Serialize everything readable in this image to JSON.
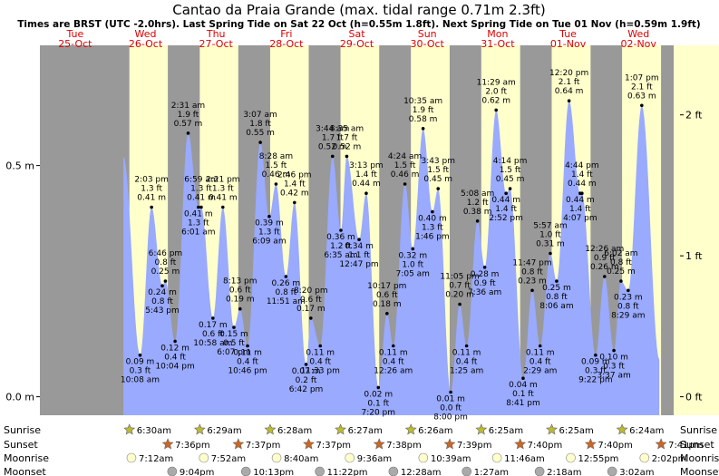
{
  "chart_data": {
    "type": "area",
    "title": "Cantao da Praia Grande (max. tidal range 0.71m 2.3ft)",
    "subtitle": "Times are BRST (UTC -2.0hrs). Last Spring Tide on Sat 22 Oct (h=0.55m 1.8ft). Next Spring Tide on Tue 01 Nov (h=0.59m 1.9ft)",
    "left_axis_labels": [
      "0.5 m",
      "0.0 m"
    ],
    "right_axis_labels": [
      "2 ft",
      "1 ft",
      "0 ft"
    ],
    "days": [
      {
        "name": "Tue",
        "date": "25-Oct"
      },
      {
        "name": "Wed",
        "date": "26-Oct"
      },
      {
        "name": "Thu",
        "date": "27-Oct"
      },
      {
        "name": "Fri",
        "date": "28-Oct"
      },
      {
        "name": "Sat",
        "date": "29-Oct"
      },
      {
        "name": "Sun",
        "date": "30-Oct"
      },
      {
        "name": "Mon",
        "date": "31-Oct"
      },
      {
        "name": "Tue",
        "date": "01-Nov"
      },
      {
        "name": "Wed",
        "date": "02-Nov"
      }
    ],
    "x_start": "2022-10-25 00:00",
    "x_end": "2022-11-02 23:59",
    "ylim_m": [
      -0.04,
      0.76
    ],
    "tides": [
      {
        "t": "2022-10-26 10:08",
        "m": 0.09,
        "time": "10:08 am",
        "h_m": "0.09 m",
        "h_ft": "0.3 ft",
        "type": "low"
      },
      {
        "t": "2022-10-26 14:03",
        "m": 0.41,
        "time": "2:03 pm",
        "h_m": "0.41 m",
        "h_ft": "1.3 ft",
        "type": "high"
      },
      {
        "t": "2022-10-26 17:43",
        "m": 0.24,
        "time": "5:43 pm",
        "h_m": "0.24 m",
        "h_ft": "0.8 ft",
        "type": "low"
      },
      {
        "t": "2022-10-26 18:46",
        "m": 0.25,
        "time": "6:46 pm",
        "h_m": "0.25 m",
        "h_ft": "0.8 ft",
        "type": "high"
      },
      {
        "t": "2022-10-26 22:04",
        "m": 0.12,
        "time": "10:04 pm",
        "h_m": "0.12 m",
        "h_ft": "0.4 ft",
        "type": "low"
      },
      {
        "t": "2022-10-27 02:31",
        "m": 0.57,
        "time": "2:31 am",
        "h_m": "0.57 m",
        "h_ft": "1.9 ft",
        "type": "high"
      },
      {
        "t": "2022-10-27 06:01",
        "m": 0.41,
        "time": "6:01 am",
        "h_m": "0.41 m",
        "h_ft": "1.3 ft",
        "type": "low"
      },
      {
        "t": "2022-10-27 06:59",
        "m": 0.41,
        "time": "6:59 am",
        "h_m": "0.41 m",
        "h_ft": "1.3 ft",
        "type": "high"
      },
      {
        "t": "2022-10-27 10:58",
        "m": 0.17,
        "time": "10:58 am",
        "h_m": "0.17 m",
        "h_ft": "0.6 ft",
        "type": "low"
      },
      {
        "t": "2022-10-27 14:21",
        "m": 0.41,
        "time": "2:21 pm",
        "h_m": "0.41 m",
        "h_ft": "1.3 ft",
        "type": "high"
      },
      {
        "t": "2022-10-27 18:07",
        "m": 0.15,
        "time": "6:07 pm",
        "h_m": "0.15 m",
        "h_ft": "0.5 ft",
        "type": "low"
      },
      {
        "t": "2022-10-27 20:13",
        "m": 0.19,
        "time": "8:13 pm",
        "h_m": "0.19 m",
        "h_ft": "0.6 ft",
        "type": "high"
      },
      {
        "t": "2022-10-27 22:46",
        "m": 0.11,
        "time": "10:46 pm",
        "h_m": "0.11 m",
        "h_ft": "0.4 ft",
        "type": "low"
      },
      {
        "t": "2022-10-28 03:07",
        "m": 0.55,
        "time": "3:07 am",
        "h_m": "0.55 m",
        "h_ft": "1.8 ft",
        "type": "high"
      },
      {
        "t": "2022-10-28 06:09",
        "m": 0.39,
        "time": "6:09 am",
        "h_m": "0.39 m",
        "h_ft": "1.3 ft",
        "type": "low"
      },
      {
        "t": "2022-10-28 08:28",
        "m": 0.46,
        "time": "8:28 am",
        "h_m": "0.46 m",
        "h_ft": "1.5 ft",
        "type": "high"
      },
      {
        "t": "2022-10-28 11:51",
        "m": 0.26,
        "time": "11:51 am",
        "h_m": "0.26 m",
        "h_ft": "0.8 ft",
        "type": "low"
      },
      {
        "t": "2022-10-28 14:46",
        "m": 0.42,
        "time": "2:46 pm",
        "h_m": "0.42 m",
        "h_ft": "1.4 ft",
        "type": "high"
      },
      {
        "t": "2022-10-28 18:42",
        "m": 0.07,
        "time": "6:42 pm",
        "h_m": "0.07 m",
        "h_ft": "0.2 ft",
        "type": "low"
      },
      {
        "t": "2022-10-28 20:20",
        "m": 0.17,
        "time": "8:20 pm",
        "h_m": "0.17 m",
        "h_ft": "0.6 ft",
        "type": "high"
      },
      {
        "t": "2022-10-28 23:33",
        "m": 0.11,
        "time": "11:33 pm",
        "h_m": "0.11 m",
        "h_ft": "0.4 ft",
        "type": "low"
      },
      {
        "t": "2022-10-29 03:44",
        "m": 0.52,
        "time": "3:44 am",
        "h_m": "0.52 m",
        "h_ft": "1.7 ft",
        "type": "high"
      },
      {
        "t": "2022-10-29 06:35",
        "m": 0.36,
        "time": "6:35 am",
        "h_m": "0.36 m",
        "h_ft": "1.2 ft",
        "type": "low"
      },
      {
        "t": "2022-10-29 08:35",
        "m": 0.52,
        "time": "8:35 am",
        "h_m": "0.52 m",
        "h_ft": "1.7 ft",
        "type": "high"
      },
      {
        "t": "2022-10-29 12:47",
        "m": 0.34,
        "time": "12:47 pm",
        "h_m": "0.34 m",
        "h_ft": "1.1 ft",
        "type": "low"
      },
      {
        "t": "2022-10-29 15:13",
        "m": 0.44,
        "time": "3:13 pm",
        "h_m": "0.44 m",
        "h_ft": "1.4 ft",
        "type": "high"
      },
      {
        "t": "2022-10-29 19:20",
        "m": 0.02,
        "time": "7:20 pm",
        "h_m": "0.02 m",
        "h_ft": "0.1 ft",
        "type": "low"
      },
      {
        "t": "2022-10-29 22:17",
        "m": 0.18,
        "time": "10:17 pm",
        "h_m": "0.18 m",
        "h_ft": "0.6 ft",
        "type": "high"
      },
      {
        "t": "2022-10-30 00:26",
        "m": 0.11,
        "time": "12:26 am",
        "h_m": "0.11 m",
        "h_ft": "0.4 ft",
        "type": "low"
      },
      {
        "t": "2022-10-30 04:24",
        "m": 0.46,
        "time": "4:24 am",
        "h_m": "0.46 m",
        "h_ft": "1.5 ft",
        "type": "high"
      },
      {
        "t": "2022-10-30 07:05",
        "m": 0.32,
        "time": "7:05 am",
        "h_m": "0.32 m",
        "h_ft": "1.0 ft",
        "type": "low"
      },
      {
        "t": "2022-10-30 10:35",
        "m": 0.58,
        "time": "10:35 am",
        "h_m": "0.58 m",
        "h_ft": "1.9 ft",
        "type": "high"
      },
      {
        "t": "2022-10-30 13:46",
        "m": 0.4,
        "time": "1:46 pm",
        "h_m": "0.40 m",
        "h_ft": "1.3 ft",
        "type": "low"
      },
      {
        "t": "2022-10-30 15:43",
        "m": 0.45,
        "time": "3:43 pm",
        "h_m": "0.45 m",
        "h_ft": "1.5 ft",
        "type": "high"
      },
      {
        "t": "2022-10-30 20:00",
        "m": 0.01,
        "time": "8:00 pm",
        "h_m": "0.01 m",
        "h_ft": "0.0 ft",
        "type": "low"
      },
      {
        "t": "2022-10-30 23:05",
        "m": 0.2,
        "time": "11:05 pm",
        "h_m": "0.20 m",
        "h_ft": "0.7 ft",
        "type": "high"
      },
      {
        "t": "2022-10-31 01:25",
        "m": 0.11,
        "time": "1:25 am",
        "h_m": "0.11 m",
        "h_ft": "0.4 ft",
        "type": "low"
      },
      {
        "t": "2022-10-31 05:08",
        "m": 0.38,
        "time": "5:08 am",
        "h_m": "0.38 m",
        "h_ft": "1.2 ft",
        "type": "high"
      },
      {
        "t": "2022-10-31 07:36",
        "m": 0.28,
        "time": "7:36 am",
        "h_m": "0.28 m",
        "h_ft": "0.9 ft",
        "type": "low"
      },
      {
        "t": "2022-10-31 11:29",
        "m": 0.62,
        "time": "11:29 am",
        "h_m": "0.62 m",
        "h_ft": "2.0 ft",
        "type": "high"
      },
      {
        "t": "2022-10-31 14:52",
        "m": 0.44,
        "time": "2:52 pm",
        "h_m": "0.44 m",
        "h_ft": "1.4 ft",
        "type": "low"
      },
      {
        "t": "2022-10-31 16:14",
        "m": 0.45,
        "time": "4:14 pm",
        "h_m": "0.45 m",
        "h_ft": "1.5 ft",
        "type": "high"
      },
      {
        "t": "2022-10-31 20:41",
        "m": 0.04,
        "time": "8:41 pm",
        "h_m": "0.04 m",
        "h_ft": "0.1 ft",
        "type": "low"
      },
      {
        "t": "2022-10-31 23:47",
        "m": 0.23,
        "time": "11:47 pm",
        "h_m": "0.23 m",
        "h_ft": "0.8 ft",
        "type": "high"
      },
      {
        "t": "2022-11-01 02:29",
        "m": 0.11,
        "time": "2:29 am",
        "h_m": "0.11 m",
        "h_ft": "0.4 ft",
        "type": "low"
      },
      {
        "t": "2022-11-01 05:57",
        "m": 0.31,
        "time": "5:57 am",
        "h_m": "0.31 m",
        "h_ft": "1.0 ft",
        "type": "high"
      },
      {
        "t": "2022-11-01 08:06",
        "m": 0.25,
        "time": "8:06 am",
        "h_m": "0.25 m",
        "h_ft": "0.8 ft",
        "type": "low"
      },
      {
        "t": "2022-11-01 12:20",
        "m": 0.64,
        "time": "12:20 pm",
        "h_m": "0.64 m",
        "h_ft": "2.1 ft",
        "type": "high"
      },
      {
        "t": "2022-11-01 16:07",
        "m": 0.44,
        "time": "4:07 pm",
        "h_m": "0.44 m",
        "h_ft": "1.4 ft",
        "type": "low"
      },
      {
        "t": "2022-11-01 16:44",
        "m": 0.44,
        "time": "4:44 pm",
        "h_m": "0.44 m",
        "h_ft": "1.4 ft",
        "type": "high"
      },
      {
        "t": "2022-11-01 21:22",
        "m": 0.09,
        "time": "9:22 pm",
        "h_m": "0.09 m",
        "h_ft": "0.3 ft",
        "type": "low"
      },
      {
        "t": "2022-11-02 00:26",
        "m": 0.26,
        "time": "12:26 am",
        "h_m": "0.26 m",
        "h_ft": "0.9 ft",
        "type": "high"
      },
      {
        "t": "2022-11-02 03:37",
        "m": 0.1,
        "time": "3:37 am",
        "h_m": "0.10 m",
        "h_ft": "0.3 ft",
        "type": "low"
      },
      {
        "t": "2022-11-02 06:02",
        "m": 0.25,
        "time": "6:02 am",
        "h_m": "0.25 m",
        "h_ft": "0.8 ft",
        "type": "high"
      },
      {
        "t": "2022-11-02 08:29",
        "m": 0.23,
        "time": "8:29 am",
        "h_m": "0.23 m",
        "h_ft": "0.8 ft",
        "type": "low"
      },
      {
        "t": "2022-11-02 13:07",
        "m": 0.63,
        "time": "1:07 pm",
        "h_m": "0.63 m",
        "h_ft": "2.1 ft",
        "type": "high"
      }
    ],
    "sunrise": [
      {
        "t": "2022-10-26 06:30",
        "label": "6:30am"
      },
      {
        "t": "2022-10-27 06:29",
        "label": "6:29am"
      },
      {
        "t": "2022-10-28 06:28",
        "label": "6:28am"
      },
      {
        "t": "2022-10-29 06:27",
        "label": "6:27am"
      },
      {
        "t": "2022-10-30 06:26",
        "label": "6:26am"
      },
      {
        "t": "2022-10-31 06:25",
        "label": "6:25am"
      },
      {
        "t": "2022-11-01 06:25",
        "label": "6:25am"
      },
      {
        "t": "2022-11-02 06:24",
        "label": "6:24am"
      }
    ],
    "sunset": [
      {
        "t": "2022-10-26 19:36",
        "label": "7:36pm"
      },
      {
        "t": "2022-10-27 19:37",
        "label": "7:37pm"
      },
      {
        "t": "2022-10-28 19:37",
        "label": "7:37pm"
      },
      {
        "t": "2022-10-29 19:38",
        "label": "7:38pm"
      },
      {
        "t": "2022-10-30 19:39",
        "label": "7:39pm"
      },
      {
        "t": "2022-10-31 19:40",
        "label": "7:40pm"
      },
      {
        "t": "2022-11-01 19:40",
        "label": "7:40pm"
      },
      {
        "t": "2022-11-02 19:41",
        "label": "7:41pm"
      }
    ],
    "moonrise": [
      {
        "t": "2022-10-26 07:12",
        "label": "7:12am"
      },
      {
        "t": "2022-10-27 07:52",
        "label": "7:52am"
      },
      {
        "t": "2022-10-28 08:40",
        "label": "8:40am"
      },
      {
        "t": "2022-10-29 09:36",
        "label": "9:36am"
      },
      {
        "t": "2022-10-30 10:39",
        "label": "10:39am"
      },
      {
        "t": "2022-10-31 11:46",
        "label": "11:46am"
      },
      {
        "t": "2022-11-01 12:55",
        "label": "12:55pm"
      },
      {
        "t": "2022-11-02 14:02",
        "label": "2:02pm"
      }
    ],
    "moonset": [
      {
        "t": "2022-10-26 21:04",
        "label": "9:04pm"
      },
      {
        "t": "2022-10-27 22:13",
        "label": "10:13pm"
      },
      {
        "t": "2022-10-28 23:22",
        "label": "11:22pm"
      },
      {
        "t": "2022-10-30 00:28",
        "label": "12:28am"
      },
      {
        "t": "2022-10-31 01:27",
        "label": "1:27am"
      },
      {
        "t": "2022-11-01 02:18",
        "label": "2:18am"
      },
      {
        "t": "2022-11-02 03:02",
        "label": "3:02am"
      }
    ],
    "row_labels": [
      "Sunrise",
      "Sunset",
      "Moonrise",
      "Moonset"
    ],
    "colors": {
      "night": "#999999",
      "day": "#ffffcc",
      "tide": "#99aaff",
      "day_header": "#dd0000",
      "sunrise": "#bbbb33",
      "sunset": "#cc6622",
      "moonrise": "#ffffcc",
      "moonset": "#aaaaaa"
    }
  }
}
